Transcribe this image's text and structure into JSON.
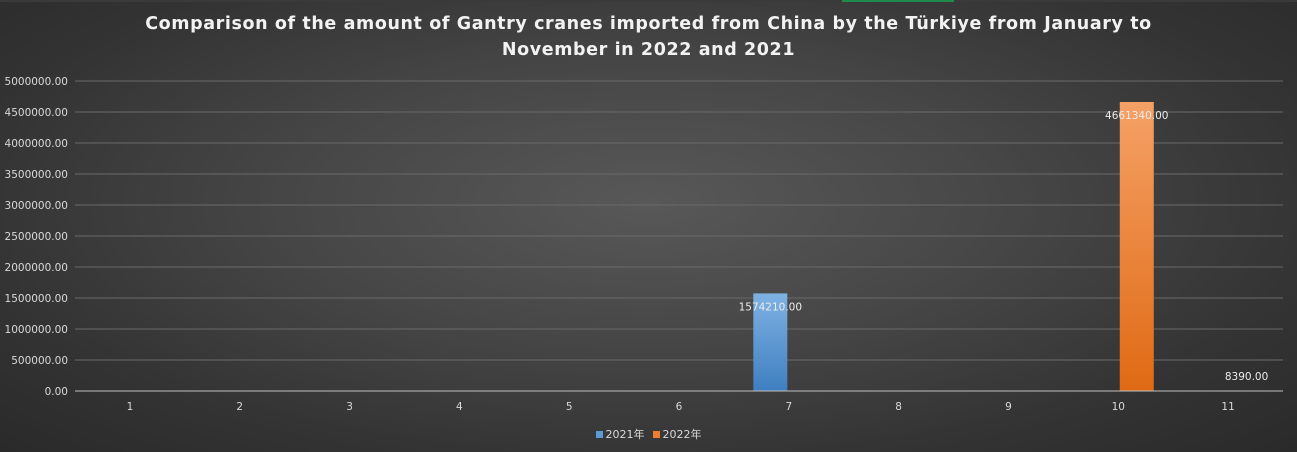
{
  "chart_data": {
    "type": "bar",
    "title": "Comparison of the amount of Gantry cranes imported from China by the Türkiye from January to November in 2022 and 2021",
    "xlabel": "",
    "ylabel": "",
    "categories": [
      "1",
      "2",
      "3",
      "4",
      "5",
      "6",
      "7",
      "8",
      "9",
      "10",
      "11"
    ],
    "series": [
      {
        "name": "2021年",
        "color": "#5b9bd5",
        "values": [
          0,
          0,
          0,
          0,
          0,
          0,
          1574210.0,
          0,
          0,
          0,
          0
        ],
        "labels": [
          "",
          "",
          "",
          "",
          "",
          "",
          "1574210.00",
          "",
          "",
          "",
          ""
        ]
      },
      {
        "name": "2022年",
        "color": "#ed7d31",
        "values": [
          0,
          0,
          0,
          0,
          0,
          0,
          0,
          0,
          0,
          4661340.0,
          8390.0
        ],
        "labels": [
          "",
          "",
          "",
          "",
          "",
          "",
          "",
          "",
          "",
          "4661340.00",
          "8390.00"
        ]
      }
    ],
    "ylim": [
      0,
      5000000
    ],
    "yticks": [
      0,
      500000,
      1000000,
      1500000,
      2000000,
      2500000,
      3000000,
      3500000,
      4000000,
      4500000,
      5000000
    ],
    "ytick_labels": [
      "0.00",
      "500000.00",
      "1000000.00",
      "1500000.00",
      "2000000.00",
      "2500000.00",
      "3000000.00",
      "3500000.00",
      "4000000.00",
      "4500000.00",
      "5000000.00"
    ],
    "grid": true,
    "legend_position": "bottom"
  }
}
